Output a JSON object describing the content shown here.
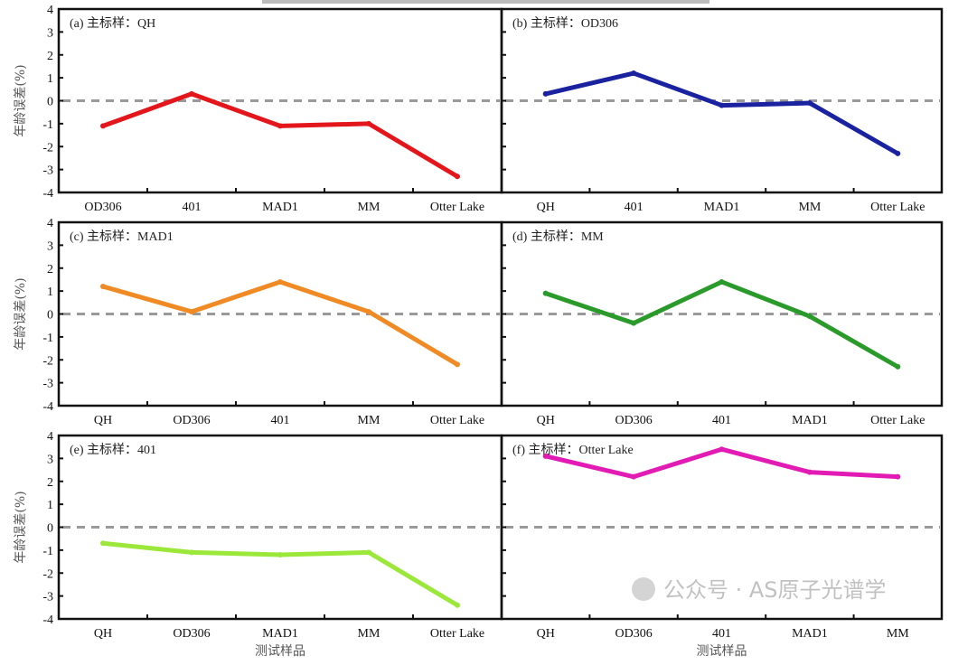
{
  "chart_data": [
    {
      "type": "line",
      "title": "(a) 主标样：QH",
      "categories": [
        "OD306",
        "401",
        "MAD1",
        "MM",
        "Otter Lake"
      ],
      "values": [
        -1.1,
        0.3,
        -1.1,
        -1.0,
        -3.3
      ],
      "color": "#e3161c",
      "ylabel": "年龄误差(%)",
      "xlabel": "",
      "ylim": [
        -4,
        4
      ],
      "yticks": [
        4,
        3,
        2,
        1,
        0,
        -1,
        -2,
        -3,
        -4
      ],
      "reference_line": 0
    },
    {
      "type": "line",
      "title": "(b) 主标样：OD306",
      "categories": [
        "QH",
        "401",
        "MAD1",
        "MM",
        "Otter Lake"
      ],
      "values": [
        0.3,
        1.2,
        -0.2,
        -0.1,
        -2.3
      ],
      "color": "#1a22a0",
      "ylabel": "",
      "xlabel": "",
      "ylim": [
        -4,
        4
      ],
      "reference_line": 0
    },
    {
      "type": "line",
      "title": "(c) 主标样：MAD1",
      "categories": [
        "QH",
        "OD306",
        "401",
        "MM",
        "Otter Lake"
      ],
      "values": [
        1.2,
        0.1,
        1.4,
        0.1,
        -2.2
      ],
      "color": "#f08a24",
      "ylabel": "年龄误差(%)",
      "xlabel": "",
      "ylim": [
        -4,
        4
      ],
      "yticks": [
        4,
        3,
        2,
        1,
        0,
        -1,
        -2,
        -3,
        -4
      ],
      "reference_line": 0
    },
    {
      "type": "line",
      "title": "(d) 主标样：MM",
      "categories": [
        "QH",
        "OD306",
        "401",
        "MAD1",
        "Otter Lake"
      ],
      "values": [
        0.9,
        -0.4,
        1.4,
        -0.1,
        -2.3
      ],
      "color": "#2a9a2a",
      "ylabel": "",
      "xlabel": "",
      "ylim": [
        -4,
        4
      ],
      "reference_line": 0
    },
    {
      "type": "line",
      "title": "(e) 主标样：401",
      "categories": [
        "QH",
        "OD306",
        "MAD1",
        "MM",
        "Otter Lake"
      ],
      "values": [
        -0.7,
        -1.1,
        -1.2,
        -1.1,
        -3.4
      ],
      "color": "#9be83a",
      "ylabel": "年龄误差(%)",
      "xlabel": "测试样品",
      "ylim": [
        -4,
        4
      ],
      "yticks": [
        4,
        3,
        2,
        1,
        0,
        -1,
        -2,
        -3,
        -4
      ],
      "reference_line": 0
    },
    {
      "type": "line",
      "title": "(f) 主标样：Otter Lake",
      "categories": [
        "QH",
        "OD306",
        "401",
        "MAD1",
        "MM"
      ],
      "values": [
        3.1,
        2.2,
        3.4,
        2.4,
        2.2
      ],
      "color": "#e21bb4",
      "ylabel": "",
      "xlabel": "测试样品",
      "ylim": [
        -4,
        4
      ],
      "reference_line": 0
    }
  ],
  "watermark": "公众号 · AS原子光谱学"
}
